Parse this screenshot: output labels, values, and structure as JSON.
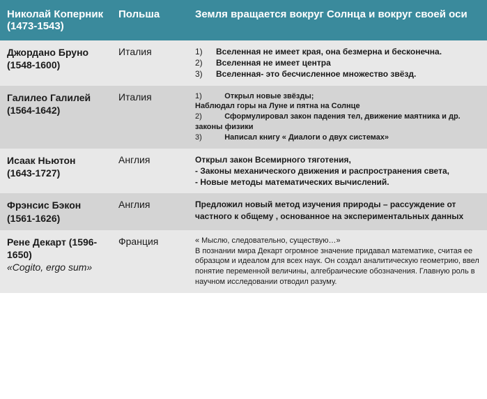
{
  "colors": {
    "header_bg": "#3a8a9c",
    "header_text": "#ffffff",
    "row_light_bg": "#e8e8e8",
    "row_dark_bg": "#d4d4d4",
    "text": "#1a1a1a"
  },
  "header": {
    "name": "Николай Коперник (1473-1543)",
    "country": "Польша",
    "contribution": "Земля вращается вокруг Солнца и вокруг своей оси"
  },
  "rows": [
    {
      "name": "Джордано Бруно (1548-1600)",
      "country": "Италия",
      "items": [
        "Вселенная не имеет края, она безмерна и бесконечна.",
        "Вселенная не имеет центра",
        "Вселенная- это бесчисленное множество звёзд."
      ]
    },
    {
      "name": "Галилео Галилей (1564-1642)",
      "country": "Италия",
      "items": [
        "Открыл новые звёзды;",
        "Наблюдал горы на Луне и пятна на Солнце",
        "Сформулировал закон падения тел, движение маятника и др. законы физики",
        "Написал книгу              « Диалоги о двух системах»"
      ]
    },
    {
      "name": "Исаак Ньютон (1643-1727)",
      "country": "Англия",
      "lines": [
        "Открыл закон Всемирного тяготения,",
        "- Законы механического движения и распространения света,",
        "- Новые методы математических вычислений."
      ]
    },
    {
      "name": "Фрэнсис Бэкон  (1561-1626)",
      "country": "Англия",
      "text": "Предложил новый метод изучения природы – рассуждение от частного к общему , основанное на экспериментальных данных"
    },
    {
      "name": "Рене Декарт (1596-1650)",
      "name_extra": "«Cogito, ergo sum»",
      "country": "Франция",
      "lines": [
        "« Мыслю, следовательно,  существую…»",
        "В познании мира Декарт огромное значение придавал математике, считая ее образцом и идеалом для всех наук. Он создал аналитическую геометрию, ввел понятие переменной величины, алгебраические обозначения. Главную роль в научном исследовании отводил разуму."
      ]
    }
  ],
  "nums": {
    "n1": "1)",
    "n2": "2)",
    "n3": "3)"
  }
}
